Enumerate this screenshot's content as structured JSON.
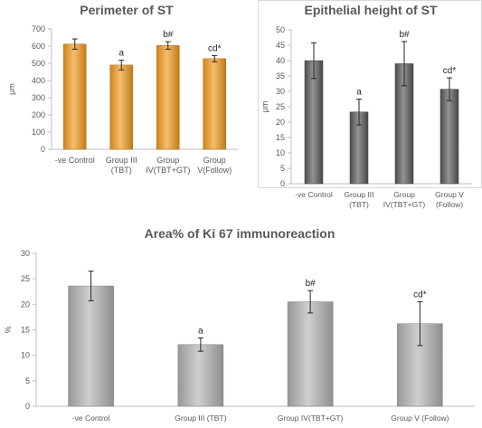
{
  "chart_data": [
    {
      "type": "bar",
      "title": "Perimeter of ST",
      "ylabel": "μm",
      "ylim": [
        0,
        700
      ],
      "yticks": [
        0,
        100,
        200,
        300,
        400,
        500,
        600,
        700
      ],
      "grid": false,
      "bar_color": "#F39A1E",
      "categories": [
        [
          "-ve Control"
        ],
        [
          "Group III",
          "(TBT)"
        ],
        [
          "Group",
          "IV(TBT+GT)"
        ],
        [
          "Group",
          "V(Follow)"
        ]
      ],
      "values": [
        612,
        490,
        604,
        527
      ],
      "errors": [
        30,
        28,
        22,
        18
      ],
      "annotations": [
        "",
        "a",
        "b#",
        "cd*"
      ]
    },
    {
      "type": "bar",
      "title": "Epithelial  height of ST",
      "ylabel": "μm",
      "ylim": [
        0,
        50
      ],
      "yticks": [
        0,
        5,
        10,
        15,
        20,
        25,
        30,
        35,
        40,
        45,
        50
      ],
      "grid": false,
      "bar_color": "#595959",
      "categories": [
        [
          "-ve Control"
        ],
        [
          "Group III",
          "(TBT)"
        ],
        [
          "Group",
          "IV(TBT+GT)"
        ],
        [
          "Group V",
          "(Follow)"
        ]
      ],
      "values": [
        40,
        23.3,
        39,
        30.7
      ],
      "errors": [
        5.8,
        4.2,
        7.2,
        3.7
      ],
      "annotations": [
        "",
        "a",
        "b#",
        "cd*"
      ]
    },
    {
      "type": "bar",
      "title": "Area%  of Ki 67 immunoreaction",
      "ylabel": "%",
      "ylim": [
        0,
        30
      ],
      "yticks": [
        0,
        5,
        10,
        15,
        20,
        25,
        30
      ],
      "grid": false,
      "bar_color": "#B3B3B3",
      "categories": [
        [
          "-ve Control"
        ],
        [
          "Group III (TBT)"
        ],
        [
          "Group IV(TBT+GT)"
        ],
        [
          "Group V (Follow)"
        ]
      ],
      "values": [
        23.6,
        12.1,
        20.5,
        16.2
      ],
      "errors": [
        2.9,
        1.3,
        2.2,
        4.3
      ],
      "annotations": [
        "",
        "a",
        "b#",
        "cd*"
      ]
    }
  ]
}
